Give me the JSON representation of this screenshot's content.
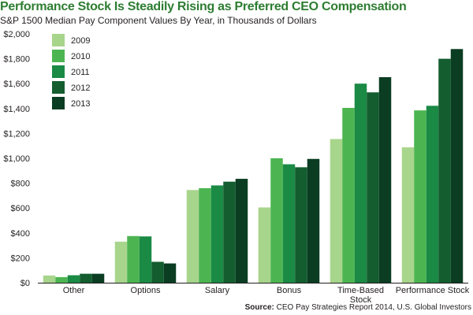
{
  "chart_data": {
    "type": "bar",
    "title": "Performance Stock Is Steadily Rising as Preferred CEO Compensation",
    "subtitle": "S&P 1500 Median Pay Component Values By Year, in Thousands of Dollars",
    "categories": [
      "Other",
      "Options",
      "Salary",
      "Bonus",
      "Time-Based Stock",
      "Performance Stock"
    ],
    "category_lines": [
      [
        "Other"
      ],
      [
        "Options"
      ],
      [
        "Salary"
      ],
      [
        "Bonus"
      ],
      [
        "Time-Based",
        "Stock"
      ],
      [
        "Performance Stock"
      ]
    ],
    "series": [
      {
        "name": "2009",
        "color": "#a8d58c",
        "values": [
          58,
          330,
          745,
          605,
          1155,
          1088
        ]
      },
      {
        "name": "2010",
        "color": "#4cb551",
        "values": [
          45,
          375,
          760,
          1000,
          1405,
          1385
        ]
      },
      {
        "name": "2011",
        "color": "#1a8a45",
        "values": [
          60,
          372,
          782,
          952,
          1600,
          1422
        ]
      },
      {
        "name": "2012",
        "color": "#135d2f",
        "values": [
          72,
          168,
          812,
          928,
          1530,
          1800
        ]
      },
      {
        "name": "2013",
        "color": "#0a3d22",
        "values": [
          72,
          155,
          835,
          995,
          1652,
          1878
        ]
      }
    ],
    "ylim": [
      0,
      2000
    ],
    "yticks": [
      0,
      200,
      400,
      600,
      800,
      1000,
      1200,
      1400,
      1600,
      1800,
      2000
    ],
    "ytick_labels": [
      "$0",
      "$200",
      "$400",
      "$600",
      "$800",
      "$1,000",
      "$1,200",
      "$1,400",
      "$1,600",
      "$1,800",
      "$2,000"
    ],
    "grid": false,
    "legend_position": "top-left",
    "source_label": "Source:",
    "source_text": " CEO Pay Strategies Report 2014, U.S. Global Investors"
  }
}
